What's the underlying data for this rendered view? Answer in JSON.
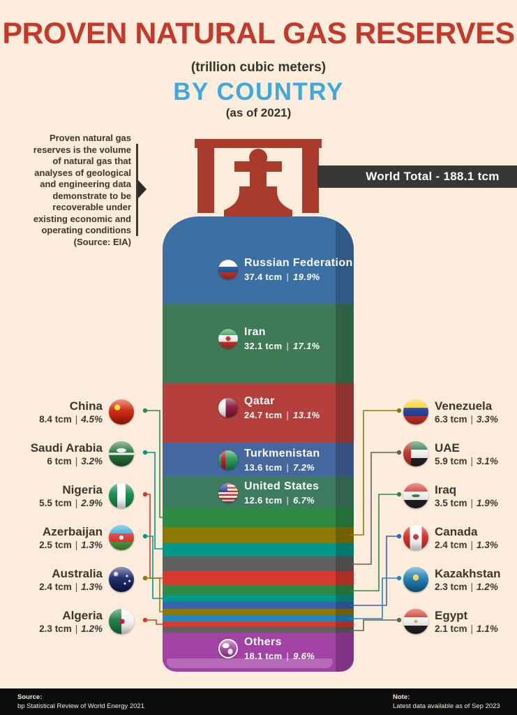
{
  "header": {
    "title": "PROVEN NATURAL GAS RESERVES",
    "subtitle": "(trillion cubic meters)",
    "by_country": "BY COUNTRY",
    "as_of": "(as of 2021)"
  },
  "description": {
    "lines": [
      "Proven natural gas",
      "reserves is the volume",
      "of natural gas that",
      "analyses of geological",
      "and engineering data",
      "demonstrate to be",
      "recoverable under",
      "existing economic and",
      "operating conditions",
      "(Source: EIA)"
    ]
  },
  "world_total": {
    "label": "World Total - 188.1 tcm"
  },
  "meta": {
    "value_separator": "|"
  },
  "countries": [
    {
      "id": "russia",
      "name": "Russian Federation",
      "tcm_label": "37.4 tcm",
      "pct_label": "19.9%",
      "color": "#3c70a4",
      "flag": "flag-russia-icon"
    },
    {
      "id": "iran",
      "name": "Iran",
      "tcm_label": "32.1 tcm",
      "pct_label": "17.1%",
      "color": "#3d7a55",
      "flag": "flag-iran-icon"
    },
    {
      "id": "qatar",
      "name": "Qatar",
      "tcm_label": "24.7 tcm",
      "pct_label": "13.1%",
      "color": "#b3403b",
      "flag": "flag-qatar-icon"
    },
    {
      "id": "turkmenistan",
      "name": "Turkmenistan",
      "tcm_label": "13.6 tcm",
      "pct_label": "7.2%",
      "color": "#45679f",
      "flag": "flag-turkmenistan-icon"
    },
    {
      "id": "usa",
      "name": "United States",
      "tcm_label": "12.6 tcm",
      "pct_label": "6.7%",
      "color": "#3e7c62",
      "flag": "flag-usa-icon"
    },
    {
      "id": "china",
      "name": "China",
      "tcm_label": "8.4 tcm",
      "pct_label": "4.5%",
      "color": "#2e8b45",
      "flag": "flag-china-icon"
    },
    {
      "id": "venezuela",
      "name": "Venezuela",
      "tcm_label": "6.3 tcm",
      "pct_label": "3.3%",
      "color": "#8c7a00",
      "flag": "flag-venezuela-icon"
    },
    {
      "id": "saudi",
      "name": "Saudi Arabia",
      "tcm_label": "6 tcm",
      "pct_label": "3.2%",
      "color": "#009688",
      "flag": "flag-saudi-arabia-icon"
    },
    {
      "id": "uae",
      "name": "UAE",
      "tcm_label": "5.9 tcm",
      "pct_label": "3.1%",
      "color": "#606060",
      "flag": "flag-uae-icon"
    },
    {
      "id": "nigeria",
      "name": "Nigeria",
      "tcm_label": "5.5 tcm",
      "pct_label": "2.9%",
      "color": "#d93a30",
      "flag": "flag-nigeria-icon"
    },
    {
      "id": "iraq",
      "name": "Iraq",
      "tcm_label": "3.5 tcm",
      "pct_label": "1.9%",
      "color": "#2e8b45",
      "flag": "flag-iraq-icon"
    },
    {
      "id": "azerbaijan",
      "name": "Azerbaijan",
      "tcm_label": "2.5 tcm",
      "pct_label": "1.3%",
      "color": "#009688",
      "flag": "flag-azerbaijan-icon"
    },
    {
      "id": "canada",
      "name": "Canada",
      "tcm_label": "2.4 tcm",
      "pct_label": "1.3%",
      "color": "#3a62ae",
      "flag": "flag-canada-icon"
    },
    {
      "id": "australia",
      "name": "Australia",
      "tcm_label": "2.4 tcm",
      "pct_label": "1.3%",
      "color": "#8c7a00",
      "flag": "flag-australia-icon"
    },
    {
      "id": "kazakhstan",
      "name": "Kazakhstan",
      "tcm_label": "2.3 tcm",
      "pct_label": "1.2%",
      "color": "#1f87c4",
      "flag": "flag-kazakhstan-icon"
    },
    {
      "id": "algeria",
      "name": "Algeria",
      "tcm_label": "2.3 tcm",
      "pct_label": "1.2%",
      "color": "#d93a30",
      "flag": "flag-algeria-icon"
    },
    {
      "id": "egypt",
      "name": "Egypt",
      "tcm_label": "2.1 tcm",
      "pct_label": "1.1%",
      "color": "#606060",
      "flag": "flag-egypt-icon"
    },
    {
      "id": "others",
      "name": "Others",
      "tcm_label": "18.1 tcm",
      "pct_label": "9.6%",
      "color": "#a242a5",
      "flag": "globe-icon"
    }
  ],
  "footer": {
    "source_label": "Source:",
    "source_text": "bp Statistical Review of World Energy 2021",
    "note_label": "Note:",
    "note_text": "Latest data available as of Sep 2023"
  },
  "chart_data": {
    "type": "bar",
    "title": "Proven Natural Gas Reserves (trillion cubic meters) by Country (as of 2021)",
    "unit": "trillion cubic meters (tcm)",
    "world_total_tcm": 188.1,
    "categories": [
      "Russian Federation",
      "Iran",
      "Qatar",
      "Turkmenistan",
      "United States",
      "China",
      "Venezuela",
      "Saudi Arabia",
      "UAE",
      "Nigeria",
      "Iraq",
      "Azerbaijan",
      "Canada",
      "Australia",
      "Kazakhstan",
      "Algeria",
      "Egypt",
      "Others"
    ],
    "series": [
      {
        "name": "Reserves (tcm)",
        "values": [
          37.4,
          32.1,
          24.7,
          13.6,
          12.6,
          8.4,
          6.3,
          6,
          5.9,
          5.5,
          3.5,
          2.5,
          2.4,
          2.4,
          2.3,
          2.3,
          2.1,
          18.1
        ]
      },
      {
        "name": "Share (%)",
        "values": [
          19.9,
          17.1,
          13.1,
          7.2,
          6.7,
          4.5,
          3.3,
          3.2,
          3.1,
          2.9,
          1.9,
          1.3,
          1.3,
          1.3,
          1.2,
          1.2,
          1.1,
          9.6
        ]
      }
    ],
    "layout_hint": "single stacked column styled as a gas cylinder, segments ordered largest to smallest top to bottom"
  }
}
